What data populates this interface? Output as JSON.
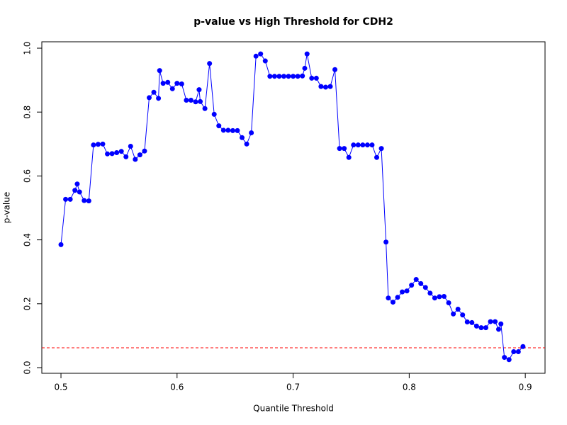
{
  "chart_data": {
    "type": "line",
    "title": "p-value vs High Threshold for CDH2",
    "x_label": "Quantile Threshold",
    "y_label": "p-value",
    "x": [
      0.5,
      0.504,
      0.508,
      0.512,
      0.514,
      0.516,
      0.52,
      0.524,
      0.528,
      0.532,
      0.536,
      0.54,
      0.544,
      0.548,
      0.552,
      0.556,
      0.56,
      0.564,
      0.568,
      0.572,
      0.576,
      0.58,
      0.584,
      0.585,
      0.588,
      0.592,
      0.596,
      0.6,
      0.604,
      0.608,
      0.612,
      0.616,
      0.619,
      0.62,
      0.624,
      0.628,
      0.632,
      0.636,
      0.64,
      0.644,
      0.648,
      0.652,
      0.656,
      0.66,
      0.664,
      0.668,
      0.672,
      0.676,
      0.68,
      0.684,
      0.688,
      0.692,
      0.696,
      0.7,
      0.704,
      0.708,
      0.71,
      0.712,
      0.716,
      0.72,
      0.724,
      0.728,
      0.732,
      0.736,
      0.74,
      0.744,
      0.748,
      0.752,
      0.756,
      0.76,
      0.764,
      0.768,
      0.772,
      0.776,
      0.78,
      0.782,
      0.786,
      0.79,
      0.794,
      0.798,
      0.802,
      0.806,
      0.81,
      0.814,
      0.818,
      0.822,
      0.826,
      0.83,
      0.834,
      0.838,
      0.842,
      0.846,
      0.85,
      0.854,
      0.858,
      0.862,
      0.866,
      0.87,
      0.874,
      0.877,
      0.879,
      0.882,
      0.886,
      0.89,
      0.894,
      0.898
    ],
    "series": [
      {
        "name": "p-value",
        "color": "#0000ff",
        "values": [
          0.385,
          0.527,
          0.527,
          0.555,
          0.575,
          0.55,
          0.523,
          0.522,
          0.697,
          0.699,
          0.7,
          0.669,
          0.67,
          0.673,
          0.677,
          0.66,
          0.693,
          0.652,
          0.666,
          0.678,
          0.845,
          0.862,
          0.843,
          0.93,
          0.89,
          0.893,
          0.873,
          0.89,
          0.888,
          0.837,
          0.837,
          0.832,
          0.87,
          0.833,
          0.811,
          0.952,
          0.793,
          0.757,
          0.743,
          0.743,
          0.742,
          0.742,
          0.72,
          0.7,
          0.735,
          0.975,
          0.982,
          0.96,
          0.912,
          0.912,
          0.912,
          0.912,
          0.912,
          0.912,
          0.912,
          0.913,
          0.937,
          0.982,
          0.906,
          0.906,
          0.88,
          0.878,
          0.88,
          0.933,
          0.686,
          0.686,
          0.658,
          0.697,
          0.697,
          0.697,
          0.697,
          0.697,
          0.658,
          0.686,
          0.393,
          0.218,
          0.205,
          0.22,
          0.237,
          0.24,
          0.258,
          0.276,
          0.263,
          0.251,
          0.233,
          0.218,
          0.222,
          0.223,
          0.203,
          0.168,
          0.183,
          0.165,
          0.143,
          0.141,
          0.13,
          0.125,
          0.125,
          0.144,
          0.144,
          0.12,
          0.137,
          0.032,
          0.025,
          0.05,
          0.05,
          0.066
        ]
      }
    ],
    "hline": {
      "value": 0.062,
      "color": "#ff0000"
    },
    "xlim": [
      0.4835,
      0.917
    ],
    "ylim": [
      -0.0177,
      1.02
    ],
    "xticks": [
      0.5,
      0.6,
      0.7,
      0.8,
      0.9
    ],
    "yticks": [
      {
        "value": 0,
        "label": "0.0"
      },
      0.2,
      0.4,
      0.6,
      0.8,
      {
        "value": 1,
        "label": "1.0"
      }
    ]
  }
}
